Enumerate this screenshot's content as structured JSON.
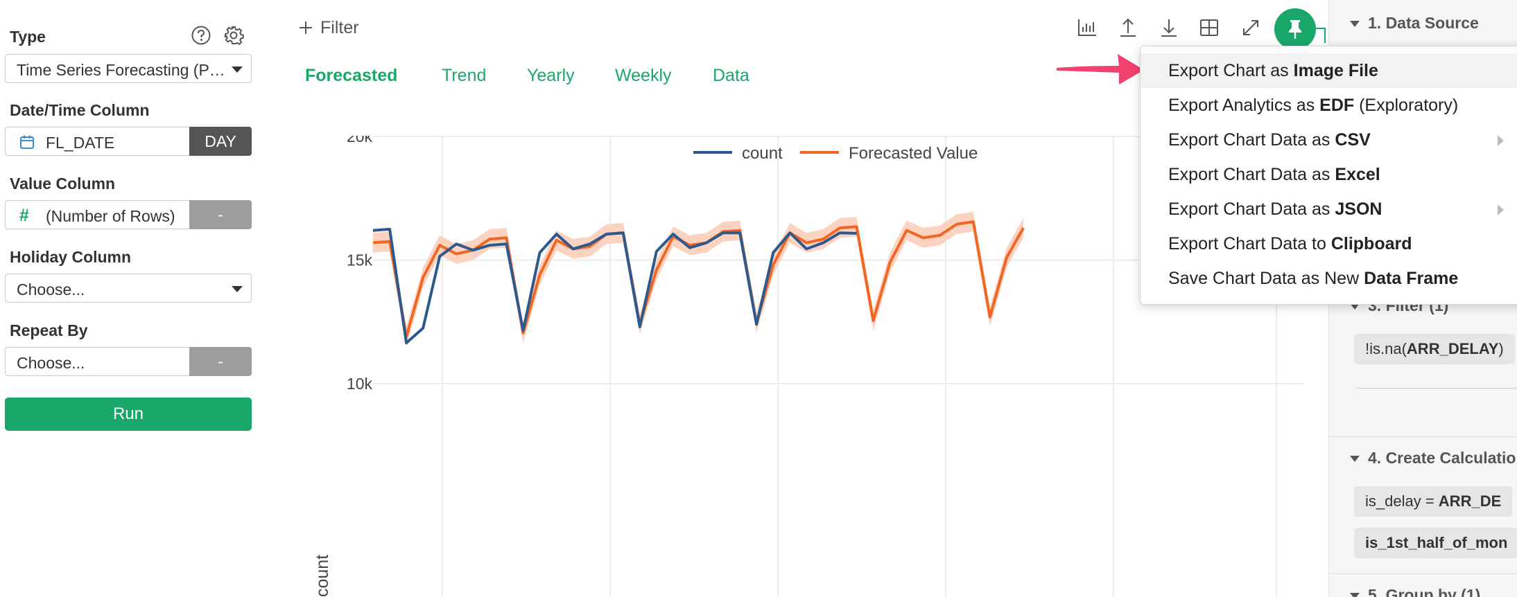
{
  "colors": {
    "accent": "#1aa86a",
    "count_line": "#2d5a8e",
    "forecast_line": "#f26522",
    "forecast_band": "#fcd3c1",
    "dark_button": "#555555",
    "gray_button": "#9e9e9e",
    "arrow": "#f1416f"
  },
  "left_panel": {
    "type_label": "Type",
    "type_value": "Time Series Forecasting (P…",
    "date_label": "Date/Time Column",
    "date_value": "FL_DATE",
    "date_unit": "DAY",
    "value_label": "Value Column",
    "value_value": "(Number of Rows)",
    "value_agg": "-",
    "holiday_label": "Holiday Column",
    "holiday_value": "Choose...",
    "repeat_label": "Repeat By",
    "repeat_value": "Choose...",
    "repeat_agg": "-",
    "run_label": "Run"
  },
  "main": {
    "filter_label": "Filter",
    "tabs": [
      {
        "label": "Forecasted",
        "active": true
      },
      {
        "label": "Trend",
        "active": false
      },
      {
        "label": "Yearly",
        "active": false
      },
      {
        "label": "Weekly",
        "active": false
      },
      {
        "label": "Data",
        "active": false
      }
    ],
    "toolbar_icons": [
      "bar-chart-icon",
      "upload-icon",
      "download-icon",
      "table-icon",
      "expand-icon",
      "pin-icon"
    ]
  },
  "menu": {
    "items": [
      {
        "prefix": "Export Chart as ",
        "bold": "Image File",
        "suffix": "",
        "submenu": false,
        "highlighted": true
      },
      {
        "prefix": "Export Analytics as ",
        "bold": "EDF",
        "suffix": " (Exploratory)",
        "submenu": false,
        "highlighted": false
      },
      {
        "prefix": "Export Chart Data as ",
        "bold": "CSV",
        "suffix": "",
        "submenu": true,
        "highlighted": false
      },
      {
        "prefix": "Export Chart Data as ",
        "bold": "Excel",
        "suffix": "",
        "submenu": false,
        "highlighted": false
      },
      {
        "prefix": "Export Chart Data as ",
        "bold": "JSON",
        "suffix": "",
        "submenu": true,
        "highlighted": false
      },
      {
        "prefix": "Export Chart Data to ",
        "bold": "Clipboard",
        "suffix": "",
        "submenu": false,
        "highlighted": false
      },
      {
        "prefix": "Save Chart Data as New ",
        "bold": "Data Frame",
        "suffix": "",
        "submenu": false,
        "highlighted": false
      }
    ]
  },
  "right_panel": {
    "step1": "1. Data Source",
    "step3": "3. Filter (1)",
    "step3_chip": {
      "prefix": "!is.na(",
      "bold": "ARR_DELAY",
      "suffix": ")"
    },
    "step4": "4. Create Calculatio",
    "step4_chips": [
      {
        "prefix": "is_delay = ",
        "bold": "ARR_DE"
      },
      {
        "prefix": "is_1st_half_of_mon",
        "bold": ""
      }
    ],
    "step5": "5. Group by (1)"
  },
  "chart_data": {
    "type": "line",
    "title": "",
    "xlabel": "",
    "ylabel": "count",
    "y_ticks": [
      {
        "value": 10000,
        "label": "10k"
      },
      {
        "value": 15000,
        "label": "15k"
      },
      {
        "value": 20000,
        "label": "20k"
      }
    ],
    "ylim": [
      10000,
      20000
    ],
    "legend": {
      "placement": "top-center"
    },
    "grid": true,
    "series": [
      {
        "name": "count",
        "values": [
          16200,
          16250,
          11650,
          12250,
          15150,
          15650,
          15400,
          15600,
          15650,
          12150,
          15300,
          16050,
          15450,
          15650,
          16050,
          16100,
          12300,
          15350,
          16050,
          15500,
          15700,
          16100,
          16100,
          12400,
          15300,
          16100,
          15450,
          15700,
          16100,
          16080
        ]
      },
      {
        "name": "Forecasted Value",
        "values": [
          15700,
          15750,
          11900,
          14300,
          15600,
          15250,
          15400,
          15850,
          15900,
          12050,
          14400,
          15800,
          15450,
          15550,
          16050,
          16100,
          12400,
          14600,
          15950,
          15600,
          15700,
          16150,
          16200,
          12450,
          14800,
          16100,
          15700,
          15850,
          16300,
          16350,
          12550,
          14900,
          16200,
          15900,
          16000,
          16450,
          16550,
          12700,
          15100,
          16300
        ],
        "band_lower": [
          15300,
          15350,
          11500,
          13900,
          15200,
          14850,
          15000,
          15450,
          15500,
          11650,
          14000,
          15400,
          15050,
          15150,
          15650,
          15700,
          12000,
          14200,
          15550,
          15200,
          15300,
          15750,
          15800,
          12050,
          14400,
          15700,
          15300,
          15450,
          15900,
          15950,
          12150,
          14500,
          15800,
          15500,
          15600,
          16050,
          16150,
          12300,
          14700,
          15900
        ],
        "band_upper": [
          16100,
          16150,
          12300,
          14700,
          16000,
          15650,
          15800,
          16250,
          16300,
          12450,
          14800,
          16200,
          15850,
          15950,
          16450,
          16500,
          12800,
          15000,
          16350,
          16000,
          16100,
          16550,
          16600,
          12850,
          15200,
          16500,
          16100,
          16250,
          16700,
          16750,
          12950,
          15300,
          16600,
          16300,
          16400,
          16850,
          16950,
          13100,
          15500,
          16700
        ]
      }
    ]
  }
}
